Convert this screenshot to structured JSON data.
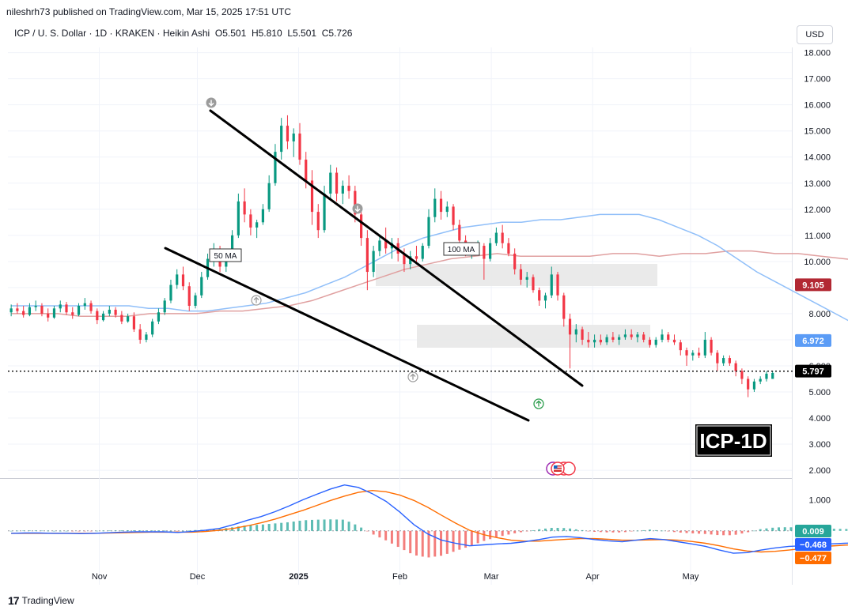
{
  "header": {
    "published": "nileshrh73 published on TradingView.com, Mar 15, 2025 17:51 UTC"
  },
  "symbol": {
    "name": "ICP / U. S. Dollar",
    "interval": "1D",
    "exchange": "KRAKEN",
    "chart_style": "Heikin Ashi",
    "sep": " · ",
    "o_label": "O",
    "o": "5.501",
    "h_label": "H",
    "h": "5.810",
    "l_label": "L",
    "l": "5.501",
    "c_label": "C",
    "c": "5.726"
  },
  "currency_button": "USD",
  "footer": {
    "brand": "TradingView",
    "logo_glyph": "17"
  },
  "colors": {
    "bull": "#089981",
    "bear": "#f23645",
    "ma50": "#90bff9",
    "ma100": "#e0a0a0",
    "macd_line": "#2962ff",
    "signal_line": "#ff6d00",
    "hist_pos": "#26a69a",
    "hist_neg": "#ef5350",
    "last_price_badge": "#000000",
    "ma100_badge": "#b22833",
    "ma50_badge": "#5b9cf6",
    "macd_badge": "#2962ff",
    "signal_badge": "#ff6d00",
    "hist_badge": "#26a69a"
  },
  "chart_data": [
    {
      "type": "candlestick",
      "title": "",
      "x_tick_labels": [
        "Nov",
        "Dec",
        "2025",
        "Feb",
        "Mar",
        "Apr",
        "May"
      ],
      "x_tick_dates": [
        "2024-11-01",
        "2024-12-01",
        "2025-01-01",
        "2025-02-01",
        "2025-03-01",
        "2025-04-01",
        "2025-05-01"
      ],
      "y_tick_labels": [
        "2.000",
        "3.000",
        "4.000",
        "5.000",
        "6.000",
        "7.000",
        "8.000",
        "9.000",
        "10.000",
        "11.000",
        "12.000",
        "13.000",
        "14.000",
        "15.000",
        "16.000",
        "17.000",
        "18.000"
      ],
      "y_ticks": [
        2,
        3,
        4,
        5,
        6,
        7,
        8,
        9,
        10,
        11,
        12,
        13,
        14,
        15,
        16,
        17,
        18
      ],
      "ylim": [
        1.7,
        18.2
      ],
      "xlim": [
        "2024-10-04",
        "2025-06-01"
      ],
      "last_price": 5.797,
      "last_price_label": "5.797",
      "ma100_value_label": "9.105",
      "ma50_value_label": "6.972",
      "annotations": {
        "ma50_label": "50 MA",
        "ma100_label": "100 MA",
        "chart_tag": "ICP-1D"
      },
      "candles": [
        [
          8.05,
          8.35,
          7.9,
          8.2
        ],
        [
          8.2,
          8.4,
          8.0,
          8.1
        ],
        [
          8.1,
          8.3,
          7.85,
          7.95
        ],
        [
          7.95,
          8.4,
          7.9,
          8.25
        ],
        [
          8.25,
          8.5,
          8.1,
          8.3
        ],
        [
          8.3,
          8.4,
          7.9,
          8.0
        ],
        [
          8.0,
          8.2,
          7.7,
          7.85
        ],
        [
          7.85,
          8.3,
          7.8,
          8.2
        ],
        [
          8.2,
          8.5,
          8.05,
          8.35
        ],
        [
          8.35,
          8.45,
          7.95,
          8.05
        ],
        [
          8.05,
          8.25,
          7.8,
          7.95
        ],
        [
          7.95,
          8.4,
          7.9,
          8.3
        ],
        [
          8.3,
          8.6,
          8.15,
          8.4
        ],
        [
          8.4,
          8.5,
          8.0,
          8.1
        ],
        [
          8.1,
          8.2,
          7.6,
          7.75
        ],
        [
          7.75,
          8.1,
          7.7,
          8.0
        ],
        [
          8.0,
          8.3,
          7.9,
          8.15
        ],
        [
          8.15,
          8.25,
          7.85,
          7.95
        ],
        [
          7.95,
          8.1,
          7.6,
          7.7
        ],
        [
          7.7,
          8.0,
          7.65,
          7.9
        ],
        [
          7.9,
          8.05,
          7.3,
          7.4
        ],
        [
          7.4,
          7.6,
          6.85,
          7.0
        ],
        [
          7.0,
          7.3,
          6.9,
          7.2
        ],
        [
          7.2,
          7.8,
          7.1,
          7.7
        ],
        [
          7.7,
          8.2,
          7.6,
          8.05
        ],
        [
          8.05,
          8.6,
          7.95,
          8.5
        ],
        [
          8.5,
          9.3,
          8.4,
          9.1
        ],
        [
          9.1,
          9.7,
          8.95,
          9.5
        ],
        [
          9.5,
          9.8,
          8.9,
          9.05
        ],
        [
          9.05,
          9.2,
          8.1,
          8.3
        ],
        [
          8.3,
          8.8,
          8.2,
          8.7
        ],
        [
          8.7,
          9.6,
          8.6,
          9.4
        ],
        [
          9.4,
          10.3,
          9.3,
          10.1
        ],
        [
          10.1,
          10.7,
          9.8,
          10.4
        ],
        [
          10.4,
          10.6,
          9.6,
          9.8
        ],
        [
          9.8,
          10.3,
          9.6,
          10.2
        ],
        [
          10.2,
          11.2,
          10.1,
          11.0
        ],
        [
          11.0,
          12.6,
          10.9,
          12.3
        ],
        [
          12.3,
          12.8,
          11.5,
          11.8
        ],
        [
          11.8,
          12.0,
          11.0,
          11.3
        ],
        [
          11.3,
          11.6,
          10.9,
          11.5
        ],
        [
          11.5,
          12.2,
          11.4,
          12.0
        ],
        [
          12.0,
          13.3,
          11.9,
          13.0
        ],
        [
          13.0,
          14.5,
          12.9,
          14.2
        ],
        [
          14.2,
          15.5,
          13.9,
          15.2
        ],
        [
          15.2,
          15.6,
          14.3,
          14.6
        ],
        [
          14.6,
          15.1,
          14.0,
          14.9
        ],
        [
          14.9,
          15.3,
          13.7,
          13.9
        ],
        [
          13.9,
          14.2,
          12.8,
          13.1
        ],
        [
          13.1,
          13.5,
          11.4,
          11.9
        ],
        [
          11.9,
          12.2,
          10.9,
          11.2
        ],
        [
          11.2,
          12.9,
          11.1,
          12.6
        ],
        [
          12.6,
          13.7,
          12.4,
          13.4
        ],
        [
          13.4,
          13.6,
          12.3,
          12.6
        ],
        [
          12.6,
          13.1,
          12.2,
          12.9
        ],
        [
          12.9,
          13.3,
          12.4,
          12.7
        ],
        [
          12.7,
          12.9,
          11.5,
          11.8
        ],
        [
          11.8,
          12.0,
          10.6,
          10.9
        ],
        [
          10.9,
          11.2,
          8.9,
          9.6
        ],
        [
          9.6,
          10.6,
          9.4,
          10.4
        ],
        [
          10.4,
          11.0,
          10.2,
          10.8
        ],
        [
          10.8,
          11.3,
          10.3,
          10.5
        ],
        [
          10.5,
          10.9,
          10.1,
          10.7
        ],
        [
          10.7,
          10.9,
          10.0,
          10.3
        ],
        [
          10.3,
          10.5,
          9.6,
          9.9
        ],
        [
          9.9,
          10.4,
          9.7,
          10.2
        ],
        [
          10.2,
          10.6,
          9.9,
          10.1
        ],
        [
          10.1,
          10.7,
          10.0,
          10.6
        ],
        [
          10.6,
          12.0,
          10.5,
          11.7
        ],
        [
          11.7,
          12.8,
          11.5,
          12.4
        ],
        [
          12.4,
          12.7,
          11.6,
          11.9
        ],
        [
          11.9,
          12.3,
          11.7,
          12.1
        ],
        [
          12.1,
          12.2,
          11.2,
          11.4
        ],
        [
          11.4,
          11.6,
          10.6,
          10.8
        ],
        [
          10.8,
          11.0,
          10.2,
          10.4
        ],
        [
          10.4,
          10.7,
          10.1,
          10.5
        ],
        [
          10.5,
          10.8,
          10.3,
          10.6
        ],
        [
          10.6,
          10.7,
          9.3,
          10.1
        ],
        [
          10.1,
          10.9,
          10.0,
          10.7
        ],
        [
          10.7,
          11.3,
          10.6,
          11.1
        ],
        [
          11.1,
          11.4,
          10.5,
          10.7
        ],
        [
          10.7,
          10.9,
          10.2,
          10.3
        ],
        [
          10.3,
          10.5,
          9.5,
          9.7
        ],
        [
          9.7,
          9.9,
          9.1,
          9.3
        ],
        [
          9.3,
          9.6,
          9.0,
          9.4
        ],
        [
          9.4,
          9.5,
          8.8,
          8.9
        ],
        [
          8.9,
          9.0,
          8.3,
          8.5
        ],
        [
          8.5,
          8.8,
          8.2,
          8.7
        ],
        [
          8.7,
          9.8,
          8.6,
          9.5
        ],
        [
          9.5,
          9.6,
          8.5,
          8.7
        ],
        [
          8.7,
          8.8,
          7.5,
          7.8
        ],
        [
          7.8,
          8.0,
          5.9,
          7.2
        ],
        [
          7.2,
          7.6,
          6.9,
          7.4
        ],
        [
          7.4,
          7.5,
          6.8,
          7.0
        ],
        [
          7.0,
          7.3,
          6.7,
          6.9
        ],
        [
          6.9,
          7.2,
          6.7,
          7.0
        ],
        [
          7.0,
          7.2,
          6.8,
          6.9
        ],
        [
          6.9,
          7.2,
          6.8,
          7.1
        ],
        [
          7.1,
          7.3,
          6.9,
          7.0
        ],
        [
          7.0,
          7.2,
          6.8,
          7.1
        ],
        [
          7.1,
          7.4,
          7.0,
          7.2
        ],
        [
          7.2,
          7.4,
          7.0,
          7.1
        ],
        [
          7.1,
          7.3,
          6.9,
          7.2
        ],
        [
          7.2,
          7.3,
          6.9,
          7.0
        ],
        [
          7.0,
          7.1,
          6.7,
          6.8
        ],
        [
          6.8,
          7.1,
          6.7,
          7.0
        ],
        [
          7.0,
          7.4,
          6.9,
          7.2
        ],
        [
          7.2,
          7.3,
          6.9,
          7.0
        ],
        [
          7.0,
          7.2,
          6.8,
          6.9
        ],
        [
          6.9,
          7.0,
          6.4,
          6.6
        ],
        [
          6.6,
          6.7,
          6.0,
          6.4
        ],
        [
          6.4,
          6.6,
          6.2,
          6.5
        ],
        [
          6.5,
          6.7,
          6.3,
          6.4
        ],
        [
          6.4,
          7.3,
          6.3,
          7.0
        ],
        [
          7.0,
          7.1,
          6.4,
          6.5
        ],
        [
          6.5,
          6.6,
          5.8,
          6.1
        ],
        [
          6.1,
          6.4,
          6.0,
          6.3
        ],
        [
          6.3,
          6.4,
          6.0,
          6.1
        ],
        [
          6.1,
          6.2,
          5.6,
          5.8
        ],
        [
          5.8,
          5.9,
          5.3,
          5.5
        ],
        [
          5.5,
          5.6,
          4.8,
          5.1
        ],
        [
          5.1,
          5.5,
          5.0,
          5.4
        ],
        [
          5.4,
          5.6,
          5.3,
          5.5
        ],
        [
          5.5,
          5.8,
          5.4,
          5.7
        ],
        [
          5.501,
          5.81,
          5.501,
          5.726
        ]
      ],
      "ma50": [
        8.3,
        8.3,
        8.3,
        8.3,
        8.3,
        8.3,
        8.3,
        8.2,
        8.2,
        8.1,
        8.1,
        8.2,
        8.3,
        8.4,
        8.6,
        8.8,
        9.1,
        9.4,
        9.8,
        10.2,
        10.6,
        10.9,
        11.1,
        11.3,
        11.4,
        11.5,
        11.5,
        11.6,
        11.6,
        11.7,
        11.8,
        11.8,
        11.8,
        11.6,
        11.3,
        11.0,
        10.6,
        10.1,
        9.6,
        9.2,
        8.8,
        8.4,
        8.0,
        7.6,
        7.2,
        7.0,
        6.972
      ],
      "ma100": [
        8.0,
        8.0,
        8.0,
        7.9,
        7.9,
        7.9,
        8.0,
        8.0,
        8.0,
        8.1,
        8.1,
        8.2,
        8.3,
        8.5,
        8.8,
        9.1,
        9.4,
        9.7,
        9.9,
        10.1,
        10.2,
        10.3,
        10.2,
        10.2,
        10.2,
        10.2,
        10.3,
        10.3,
        10.2,
        10.3,
        10.3,
        10.4,
        10.4,
        10.3,
        10.3,
        10.2,
        10.1,
        10.0,
        9.7,
        9.105
      ]
    },
    {
      "type": "macd",
      "title": "",
      "y_tick_labels": [
        "1.000"
      ],
      "y_ticks": [
        1.0
      ],
      "ylim": [
        -1.1,
        1.65
      ],
      "histogram_value_label": "0.009",
      "macd_value_label": "−0.468",
      "signal_value_label": "−0.477",
      "macd": [
        -0.08,
        -0.07,
        -0.07,
        -0.08,
        -0.08,
        -0.09,
        -0.08,
        -0.06,
        -0.04,
        -0.03,
        -0.03,
        -0.03,
        -0.05,
        -0.02,
        0.02,
        0.08,
        0.2,
        0.34,
        0.46,
        0.62,
        0.8,
        1.0,
        1.18,
        1.35,
        1.48,
        1.4,
        1.2,
        0.95,
        0.6,
        0.2,
        -0.1,
        -0.3,
        -0.4,
        -0.48,
        -0.45,
        -0.42,
        -0.4,
        -0.35,
        -0.28,
        -0.2,
        -0.18,
        -0.22,
        -0.28,
        -0.32,
        -0.35,
        -0.3,
        -0.25,
        -0.28,
        -0.35,
        -0.42,
        -0.5,
        -0.62,
        -0.72,
        -0.7,
        -0.62,
        -0.55,
        -0.5,
        -0.48,
        -0.45,
        -0.42,
        -0.4,
        -0.38,
        -0.4,
        -0.42,
        -0.45,
        -0.468
      ],
      "signal": [
        -0.08,
        -0.08,
        -0.08,
        -0.08,
        -0.08,
        -0.08,
        -0.08,
        -0.07,
        -0.06,
        -0.05,
        -0.04,
        -0.04,
        -0.04,
        -0.04,
        -0.02,
        0.02,
        0.08,
        0.16,
        0.26,
        0.38,
        0.52,
        0.66,
        0.82,
        0.98,
        1.12,
        1.24,
        1.3,
        1.26,
        1.15,
        0.98,
        0.76,
        0.5,
        0.25,
        0.02,
        -0.12,
        -0.22,
        -0.3,
        -0.33,
        -0.33,
        -0.3,
        -0.27,
        -0.25,
        -0.25,
        -0.27,
        -0.3,
        -0.3,
        -0.29,
        -0.28,
        -0.3,
        -0.34,
        -0.4,
        -0.48,
        -0.58,
        -0.65,
        -0.68,
        -0.66,
        -0.62,
        -0.57,
        -0.53,
        -0.49,
        -0.46,
        -0.44,
        -0.43,
        -0.44,
        -0.46,
        -0.477
      ]
    }
  ]
}
